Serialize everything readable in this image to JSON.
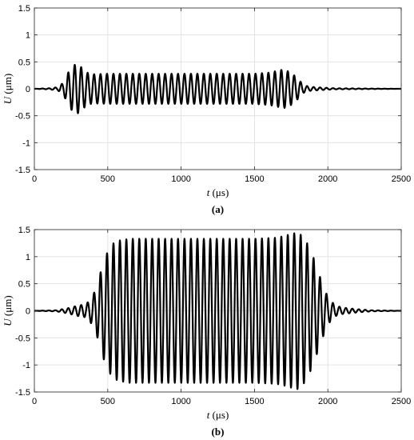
{
  "chart_data": [
    {
      "type": "line",
      "panel_label": "(a)",
      "xlabel": "t (μs)",
      "ylabel": "U (μm)",
      "xlim": [
        0,
        2500
      ],
      "ylim": [
        -1.5,
        1.5
      ],
      "xticks": [
        0,
        500,
        1000,
        1500,
        2000,
        2500
      ],
      "yticks": [
        -1.5,
        -1,
        -0.5,
        0,
        0.5,
        1,
        1.5
      ],
      "xtick_labels": [
        "0",
        "500",
        "1000",
        "1500",
        "2000",
        "2500"
      ],
      "ytick_labels": [
        "-1.5",
        "-1",
        "-0.5",
        "0",
        "0.5",
        "1",
        "1.5"
      ],
      "grid": true,
      "series": [
        {
          "color": "#000000",
          "signal_period_us": 44,
          "envelope": {
            "t": [
              0,
              100,
              160,
              200,
              230,
              260,
              290,
              320,
              360,
              400,
              500,
              800,
              1200,
              1500,
              1600,
              1650,
              1700,
              1750,
              1800,
              1830,
              1870,
              1920,
              1980,
              2050,
              2500
            ],
            "amplitude": [
              0,
              0.01,
              0.03,
              0.12,
              0.3,
              0.42,
              0.47,
              0.4,
              0.3,
              0.27,
              0.28,
              0.28,
              0.28,
              0.28,
              0.3,
              0.33,
              0.36,
              0.3,
              0.18,
              0.08,
              0.04,
              0.03,
              0.02,
              0.01,
              0
            ]
          }
        }
      ]
    },
    {
      "type": "line",
      "panel_label": "(b)",
      "xlabel": "t (μs)",
      "ylabel": "U (μm)",
      "xlim": [
        0,
        2500
      ],
      "ylim": [
        -1.5,
        1.5
      ],
      "xticks": [
        0,
        500,
        1000,
        1500,
        2000,
        2500
      ],
      "yticks": [
        -1.5,
        -1,
        -0.5,
        0,
        0.5,
        1,
        1.5
      ],
      "xtick_labels": [
        "0",
        "500",
        "1000",
        "1500",
        "2000",
        "2500"
      ],
      "ytick_labels": [
        "-1.5",
        "-1",
        "-0.5",
        "0",
        "0.5",
        "1",
        "1.5"
      ],
      "grid": true,
      "series": [
        {
          "color": "#000000",
          "signal_period_us": 44,
          "envelope": {
            "t": [
              0,
              150,
              230,
              300,
              350,
              380,
              420,
              460,
              500,
              540,
              580,
              650,
              800,
              1000,
              1500,
              1650,
              1700,
              1750,
              1800,
              1850,
              1900,
              1950,
              2000,
              2050,
              2100,
              2200,
              2300,
              2500
            ],
            "amplitude": [
              0,
              0.01,
              0.05,
              0.1,
              0.12,
              0.2,
              0.4,
              0.8,
              1.1,
              1.25,
              1.3,
              1.33,
              1.33,
              1.33,
              1.33,
              1.35,
              1.38,
              1.42,
              1.45,
              1.3,
              1.0,
              0.6,
              0.25,
              0.1,
              0.06,
              0.03,
              0.01,
              0
            ]
          }
        }
      ]
    }
  ]
}
